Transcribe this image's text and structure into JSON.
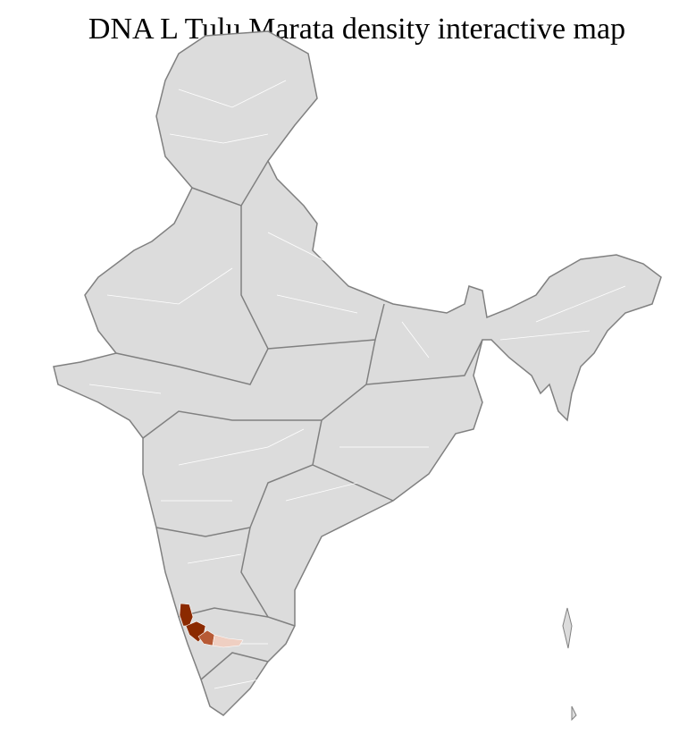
{
  "title": "DNA L Tulu Marata density interactive map",
  "colors": {
    "land": "#dcdcdc",
    "state_border": "#808080",
    "district_border": "#ffffff",
    "density_high": "#8b2a00",
    "density_mid": "#b75a35",
    "density_low": "#efcfc2"
  },
  "highlighted_regions": [
    {
      "level": "high"
    },
    {
      "level": "high"
    },
    {
      "level": "mid"
    },
    {
      "level": "low"
    }
  ]
}
